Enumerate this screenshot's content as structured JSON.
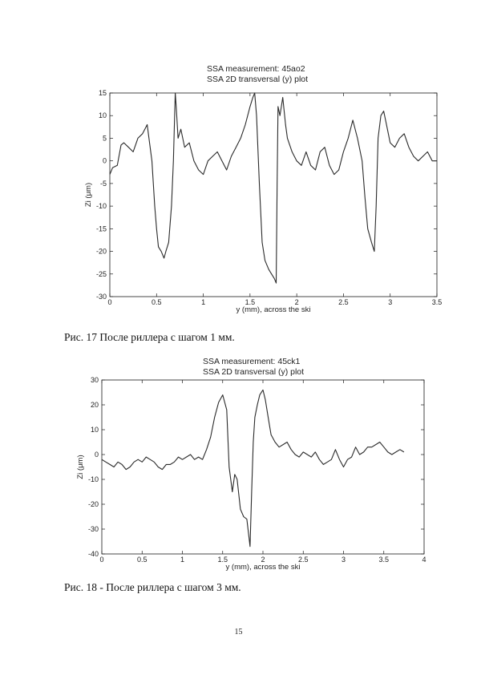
{
  "chart_data": [
    {
      "type": "line",
      "title": "SSA measurement: 45ao2",
      "subtitle": "SSA 2D transversal (y) plot",
      "xlabel": "y (mm), across the ski",
      "ylabel": "Zi (μm)",
      "xlim": [
        0,
        3.5
      ],
      "ylim": [
        -30,
        15
      ],
      "xticks": [
        0,
        0.5,
        1,
        1.5,
        2,
        2.5,
        3,
        3.5
      ],
      "yticks": [
        15,
        10,
        5,
        0,
        -5,
        -10,
        -15,
        -20,
        -25,
        -30
      ],
      "grid": false,
      "series": [
        {
          "x": [
            0,
            0.03,
            0.08,
            0.12,
            0.15,
            0.2,
            0.25,
            0.3,
            0.35,
            0.4,
            0.45,
            0.48,
            0.5,
            0.52,
            0.55,
            0.58,
            0.6,
            0.63,
            0.66,
            0.68,
            0.7,
            0.71,
            0.73,
            0.76,
            0.8,
            0.85,
            0.9,
            0.95,
            1.0,
            1.05,
            1.1,
            1.15,
            1.2,
            1.25,
            1.3,
            1.35,
            1.4,
            1.45,
            1.5,
            1.53,
            1.55,
            1.57,
            1.6,
            1.63,
            1.66,
            1.7,
            1.73,
            1.76,
            1.78,
            1.79,
            1.8,
            1.82,
            1.85,
            1.88,
            1.9,
            1.95,
            2.0,
            2.05,
            2.1,
            2.15,
            2.2,
            2.25,
            2.3,
            2.35,
            2.4,
            2.45,
            2.5,
            2.55,
            2.6,
            2.65,
            2.7,
            2.73,
            2.76,
            2.8,
            2.83,
            2.85,
            2.87,
            2.9,
            2.93,
            2.96,
            3.0,
            3.05,
            3.1,
            3.15,
            3.2,
            3.25,
            3.3,
            3.35,
            3.4,
            3.45,
            3.5
          ],
          "y": [
            -3,
            -1.5,
            -1,
            3.5,
            4,
            3,
            2,
            5,
            6,
            8,
            0,
            -10,
            -15,
            -19,
            -20,
            -21.5,
            -20,
            -18,
            -10,
            0,
            15,
            12,
            5,
            7,
            3,
            4,
            0,
            -2,
            -3,
            0,
            1,
            2,
            0,
            -2,
            1,
            3,
            5,
            8,
            12,
            14,
            15,
            10,
            -5,
            -18,
            -22,
            -24,
            -25,
            -26,
            -27,
            -5,
            12,
            10,
            14,
            8,
            5,
            2,
            0,
            -1,
            2,
            -1,
            -2,
            2,
            3,
            -1,
            -3,
            -2,
            2,
            5,
            9,
            5,
            0,
            -8,
            -15,
            -18,
            -20,
            -10,
            5,
            10,
            11,
            8,
            4,
            3,
            5,
            6,
            3,
            1,
            0,
            1,
            2,
            0,
            0
          ]
        }
      ]
    },
    {
      "type": "line",
      "title": "SSA measurement: 45ck1",
      "subtitle": "SSA 2D transversal (y) plot",
      "xlabel": "y (mm), across the ski",
      "ylabel": "Zi (μm)",
      "xlim": [
        0,
        4
      ],
      "ylim": [
        -40,
        30
      ],
      "xticks": [
        0,
        0.5,
        1,
        1.5,
        2,
        2.5,
        3,
        3.5,
        4
      ],
      "yticks": [
        30,
        20,
        10,
        0,
        -10,
        -20,
        -30,
        -40
      ],
      "grid": false,
      "series": [
        {
          "x": [
            0,
            0.05,
            0.1,
            0.15,
            0.2,
            0.25,
            0.3,
            0.35,
            0.4,
            0.45,
            0.5,
            0.55,
            0.6,
            0.65,
            0.7,
            0.75,
            0.8,
            0.85,
            0.9,
            0.95,
            1.0,
            1.05,
            1.1,
            1.15,
            1.2,
            1.25,
            1.3,
            1.35,
            1.4,
            1.45,
            1.5,
            1.55,
            1.58,
            1.62,
            1.65,
            1.68,
            1.72,
            1.76,
            1.8,
            1.84,
            1.86,
            1.88,
            1.9,
            1.93,
            1.96,
            2.0,
            2.03,
            2.07,
            2.1,
            2.15,
            2.2,
            2.25,
            2.3,
            2.35,
            2.4,
            2.45,
            2.5,
            2.55,
            2.6,
            2.65,
            2.7,
            2.75,
            2.8,
            2.85,
            2.9,
            2.95,
            3.0,
            3.05,
            3.1,
            3.15,
            3.2,
            3.25,
            3.3,
            3.35,
            3.4,
            3.45,
            3.5,
            3.55,
            3.6,
            3.65,
            3.7,
            3.75
          ],
          "y": [
            -2,
            -3,
            -4,
            -5,
            -3,
            -4,
            -6,
            -5,
            -3,
            -2,
            -3,
            -1,
            -2,
            -3,
            -5,
            -6,
            -4,
            -4,
            -3,
            -1,
            -2,
            -1,
            0,
            -2,
            -1,
            -2,
            2,
            7,
            15,
            21,
            24,
            18,
            -5,
            -15,
            -8,
            -10,
            -22,
            -25,
            -26,
            -37,
            -15,
            5,
            15,
            20,
            24,
            26,
            22,
            14,
            8,
            5,
            3,
            4,
            5,
            2,
            0,
            -1,
            1,
            0,
            -1,
            1,
            -2,
            -4,
            -3,
            -2,
            2,
            -2,
            -5,
            -2,
            -1,
            3,
            0,
            1,
            3,
            3,
            4,
            5,
            3,
            1,
            0,
            1,
            2,
            1
          ]
        }
      ]
    }
  ],
  "captions": {
    "fig17": "Рис. 17  После риллера с шагом 1 мм.",
    "fig18": "Рис. 18 - После риллера с шагом 3 мм."
  },
  "page_number": "15",
  "colors": {
    "line": "#2a2a2a",
    "axes": "#1a1a1a",
    "text": "#222222"
  }
}
